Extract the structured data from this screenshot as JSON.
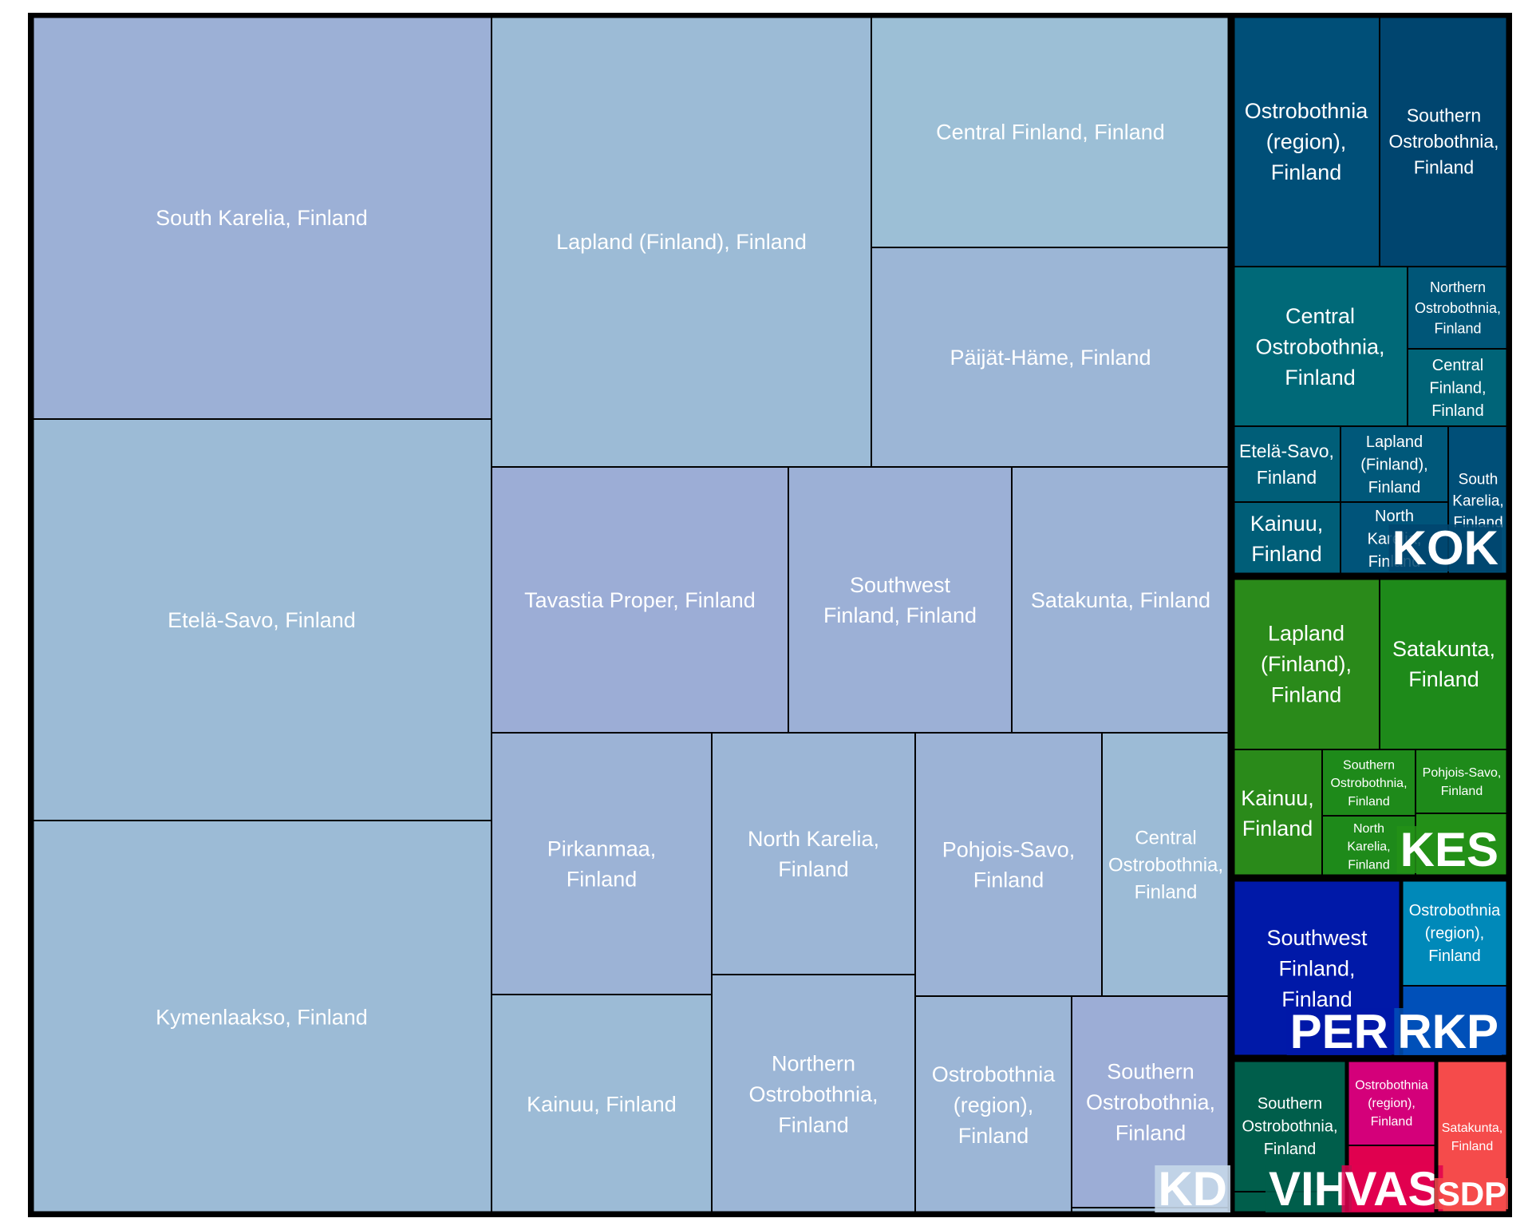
{
  "chart_data": {
    "type": "treemap",
    "title": "",
    "groups": [
      {
        "party": "KD",
        "color": "#9cb9d4",
        "label_bg": "#c5d7e9",
        "cells": [
          {
            "region": "South Karelia, Finland",
            "color": "#9cb0d6"
          },
          {
            "region": "Etelä-Savo, Finland",
            "color": "#9cbbd6"
          },
          {
            "region": "Kymenlaakso, Finland",
            "color": "#9cbbd6"
          },
          {
            "region": "Lapland (Finland), Finland",
            "color": "#9cbbd6"
          },
          {
            "region": "Central Finland, Finland",
            "color": "#9cbfd6"
          },
          {
            "region": "Päijät-Häme, Finland",
            "color": "#9cb6d6"
          },
          {
            "region": "Tavastia Proper, Finland",
            "color": "#9cadd6"
          },
          {
            "region": "Southwest Finland, Finland",
            "color": "#9cb0d6"
          },
          {
            "region": "Satakunta, Finland",
            "color": "#9cb3d6"
          },
          {
            "region": "Pirkanmaa, Finland",
            "color": "#9cb3d6"
          },
          {
            "region": "North Karelia, Finland",
            "color": "#9cb6d6"
          },
          {
            "region": "Pohjois-Savo, Finland",
            "color": "#9cb3d6"
          },
          {
            "region": "Central Ostrobothnia, Finland",
            "color": "#9cbbd6"
          },
          {
            "region": "Kainuu, Finland",
            "color": "#9cbbd6"
          },
          {
            "region": "Northern Ostrobothnia, Finland",
            "color": "#9cb6d6"
          },
          {
            "region": "Ostrobothnia (region), Finland",
            "color": "#9cb6d6"
          },
          {
            "region": "Southern Ostrobothnia, Finland",
            "color": "#9cadd6"
          }
        ]
      },
      {
        "party": "KOK",
        "color": "#00456f",
        "cells": [
          {
            "region": "Ostrobothnia (region), Finland",
            "color": "#004f78"
          },
          {
            "region": "Southern Ostrobothnia, Finland",
            "color": "#00456f"
          },
          {
            "region": "Central Ostrobothnia, Finland",
            "color": "#006978"
          },
          {
            "region": "Northern Ostrobothnia, Finland",
            "color": "#005678"
          },
          {
            "region": "Central Finland, Finland",
            "color": "#006478"
          },
          {
            "region": "Etelä-Savo, Finland",
            "color": "#005e78"
          },
          {
            "region": "Lapland (Finland), Finland",
            "color": "#00587a"
          },
          {
            "region": "South Karelia, Finland",
            "color": "#004f78"
          },
          {
            "region": "Kainuu, Finland",
            "color": "#005e78"
          },
          {
            "region": "North Karelia, Finland",
            "color": "#00547a"
          }
        ]
      },
      {
        "party": "KES",
        "color": "#239018",
        "cells": [
          {
            "region": "Lapland (Finland), Finland",
            "color": "#2a8a1a"
          },
          {
            "region": "Satakunta, Finland",
            "color": "#1e8a1a"
          },
          {
            "region": "Kainuu, Finland",
            "color": "#2a8a1a"
          },
          {
            "region": "Southern Ostrobothnia, Finland",
            "color": "#1e8a1a"
          },
          {
            "region": "Pohjois-Savo, Finland",
            "color": "#1e8a1a"
          },
          {
            "region": "North Karelia, Finland",
            "color": "#1e8a1a"
          }
        ]
      },
      {
        "party": "PER",
        "color": "#0019a8",
        "cells": [
          {
            "region": "Southwest Finland, Finland",
            "color": "#0019a8"
          }
        ]
      },
      {
        "party": "RKP",
        "color": "#0050b9",
        "cells": [
          {
            "region": "Ostrobothnia (region), Finland",
            "color": "#0089b9"
          }
        ]
      },
      {
        "party": "VIH",
        "color": "#005e4b",
        "cells": [
          {
            "region": "Southern Ostrobothnia, Finland",
            "color": "#005e4b"
          }
        ]
      },
      {
        "party": "VAS",
        "color": "#e0004f",
        "cells": [
          {
            "region": "Ostrobothnia (region), Finland",
            "color": "#d4007a"
          }
        ]
      },
      {
        "party": "SDP",
        "color": "#f54b4b",
        "cells": [
          {
            "region": "Satakunta, Finland",
            "color": "#f54b4b"
          }
        ]
      }
    ]
  }
}
